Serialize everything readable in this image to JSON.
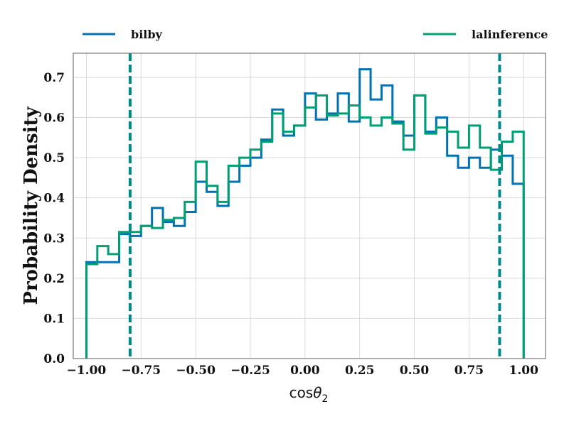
{
  "chart_data": {
    "type": "histogram",
    "title": "",
    "xlabel": "cos",
    "xlabel_symbol": "θ",
    "xlabel_subscript": "2",
    "ylabel": "Probability Density",
    "xlim": [
      -1.06,
      1.1
    ],
    "ylim": [
      0,
      0.76
    ],
    "xticks": [
      -1.0,
      -0.75,
      -0.5,
      -0.25,
      0.0,
      0.25,
      0.5,
      0.75,
      1.0
    ],
    "xtick_labels": [
      "−1.00",
      "−0.75",
      "−0.50",
      "−0.25",
      "0.00",
      "0.25",
      "0.50",
      "0.75",
      "1.00"
    ],
    "yticks": [
      0.0,
      0.1,
      0.2,
      0.3,
      0.4,
      0.5,
      0.6,
      0.7
    ],
    "ytick_labels": [
      "0.0",
      "0.1",
      "0.2",
      "0.3",
      "0.4",
      "0.5",
      "0.6",
      "0.7"
    ],
    "grid": true,
    "legend_placement": "top, outside plot",
    "bin_edges": [
      -1.0,
      -0.95,
      -0.9,
      -0.85,
      -0.8,
      -0.75,
      -0.7,
      -0.65,
      -0.6,
      -0.55,
      -0.5,
      -0.45,
      -0.4,
      -0.35,
      -0.3,
      -0.25,
      -0.2,
      -0.15,
      -0.1,
      -0.05,
      0.0,
      0.05,
      0.1,
      0.15,
      0.2,
      0.25,
      0.3,
      0.35,
      0.4,
      0.45,
      0.5,
      0.55,
      0.6,
      0.65,
      0.7,
      0.75,
      0.8,
      0.85,
      0.9,
      0.95,
      1.0
    ],
    "series": [
      {
        "name": "bilby",
        "color": "#0072b2",
        "values": [
          0.24,
          0.24,
          0.24,
          0.31,
          0.305,
          0.33,
          0.375,
          0.34,
          0.33,
          0.365,
          0.44,
          0.415,
          0.38,
          0.44,
          0.48,
          0.5,
          0.545,
          0.62,
          0.555,
          0.58,
          0.66,
          0.595,
          0.61,
          0.66,
          0.59,
          0.72,
          0.645,
          0.68,
          0.59,
          0.555,
          0.655,
          0.565,
          0.6,
          0.505,
          0.475,
          0.5,
          0.475,
          0.52,
          0.505,
          0.435
        ]
      },
      {
        "name": "lalinference",
        "color": "#009e73",
        "values": [
          0.235,
          0.28,
          0.26,
          0.315,
          0.315,
          0.33,
          0.325,
          0.345,
          0.35,
          0.39,
          0.49,
          0.43,
          0.39,
          0.48,
          0.5,
          0.52,
          0.54,
          0.61,
          0.565,
          0.58,
          0.625,
          0.655,
          0.605,
          0.61,
          0.63,
          0.6,
          0.58,
          0.6,
          0.585,
          0.52,
          0.655,
          0.56,
          0.575,
          0.565,
          0.525,
          0.58,
          0.525,
          0.47,
          0.54,
          0.565
        ]
      }
    ],
    "vertical_lines": [
      {
        "x": -0.8,
        "color": "#00898a",
        "style": "dashed"
      },
      {
        "x": 0.89,
        "color": "#00898a",
        "style": "dashed"
      }
    ]
  }
}
